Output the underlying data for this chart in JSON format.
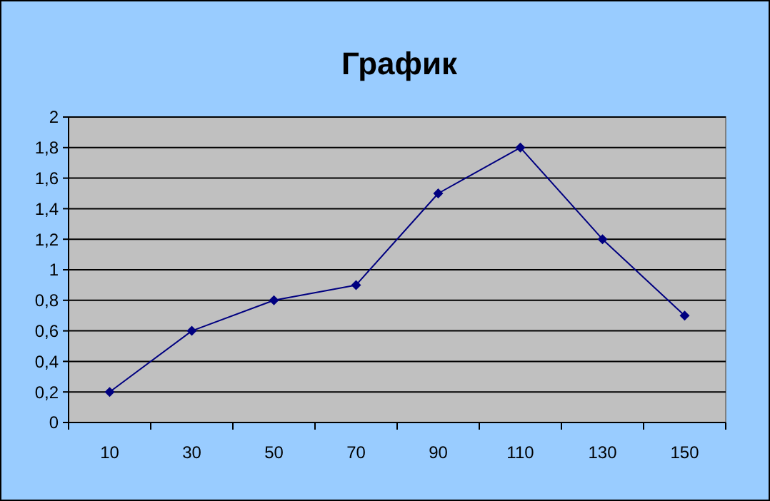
{
  "chart_data": {
    "type": "line",
    "title": "График",
    "categories": [
      "10",
      "30",
      "50",
      "70",
      "90",
      "110",
      "130",
      "150"
    ],
    "series": [
      {
        "color": "#000080",
        "values": [
          0.2,
          0.6,
          0.8,
          0.9,
          1.5,
          1.8,
          1.2,
          0.7
        ]
      }
    ],
    "ylim": [
      0,
      2
    ],
    "yticks": [
      0,
      {
        "value": 0.2,
        "label": "0,2"
      },
      {
        "value": 0.4,
        "label": "0,4"
      },
      {
        "value": 0.6,
        "label": "0,6"
      },
      {
        "value": 0.8,
        "label": "0,8"
      },
      1,
      {
        "value": 1.2,
        "label": "1,2"
      },
      {
        "value": 1.4,
        "label": "1,4"
      },
      {
        "value": 1.6,
        "label": "1,6"
      },
      {
        "value": 1.8,
        "label": "1,8"
      },
      2
    ],
    "grid": "y",
    "marker": "diamond",
    "line_style": "solid"
  }
}
